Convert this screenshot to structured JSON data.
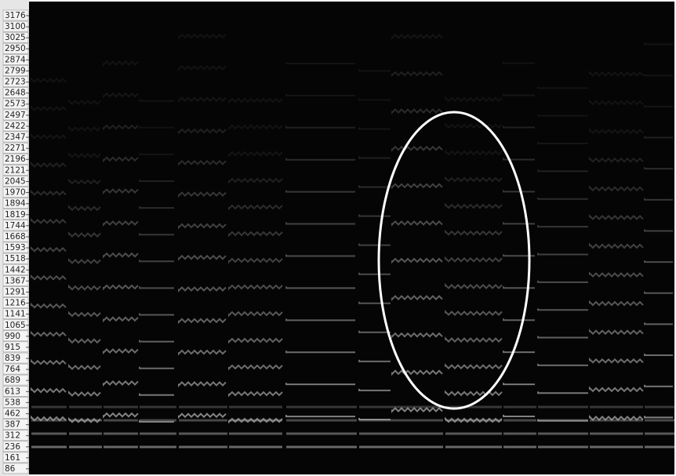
{
  "chart_data": {
    "type": "spectrogram",
    "ylim": [
      48,
      3272
    ],
    "yticks": [
      3176,
      3100,
      3025,
      2950,
      2874,
      2799,
      2723,
      2648,
      2573,
      2497,
      2422,
      2347,
      2271,
      2196,
      2121,
      2045,
      1970,
      1894,
      1819,
      1744,
      1668,
      1593,
      1518,
      1442,
      1367,
      1291,
      1216,
      1141,
      1065,
      990,
      915,
      839,
      764,
      689,
      613,
      538,
      462,
      387,
      312,
      236,
      161,
      86
    ]
  }
}
